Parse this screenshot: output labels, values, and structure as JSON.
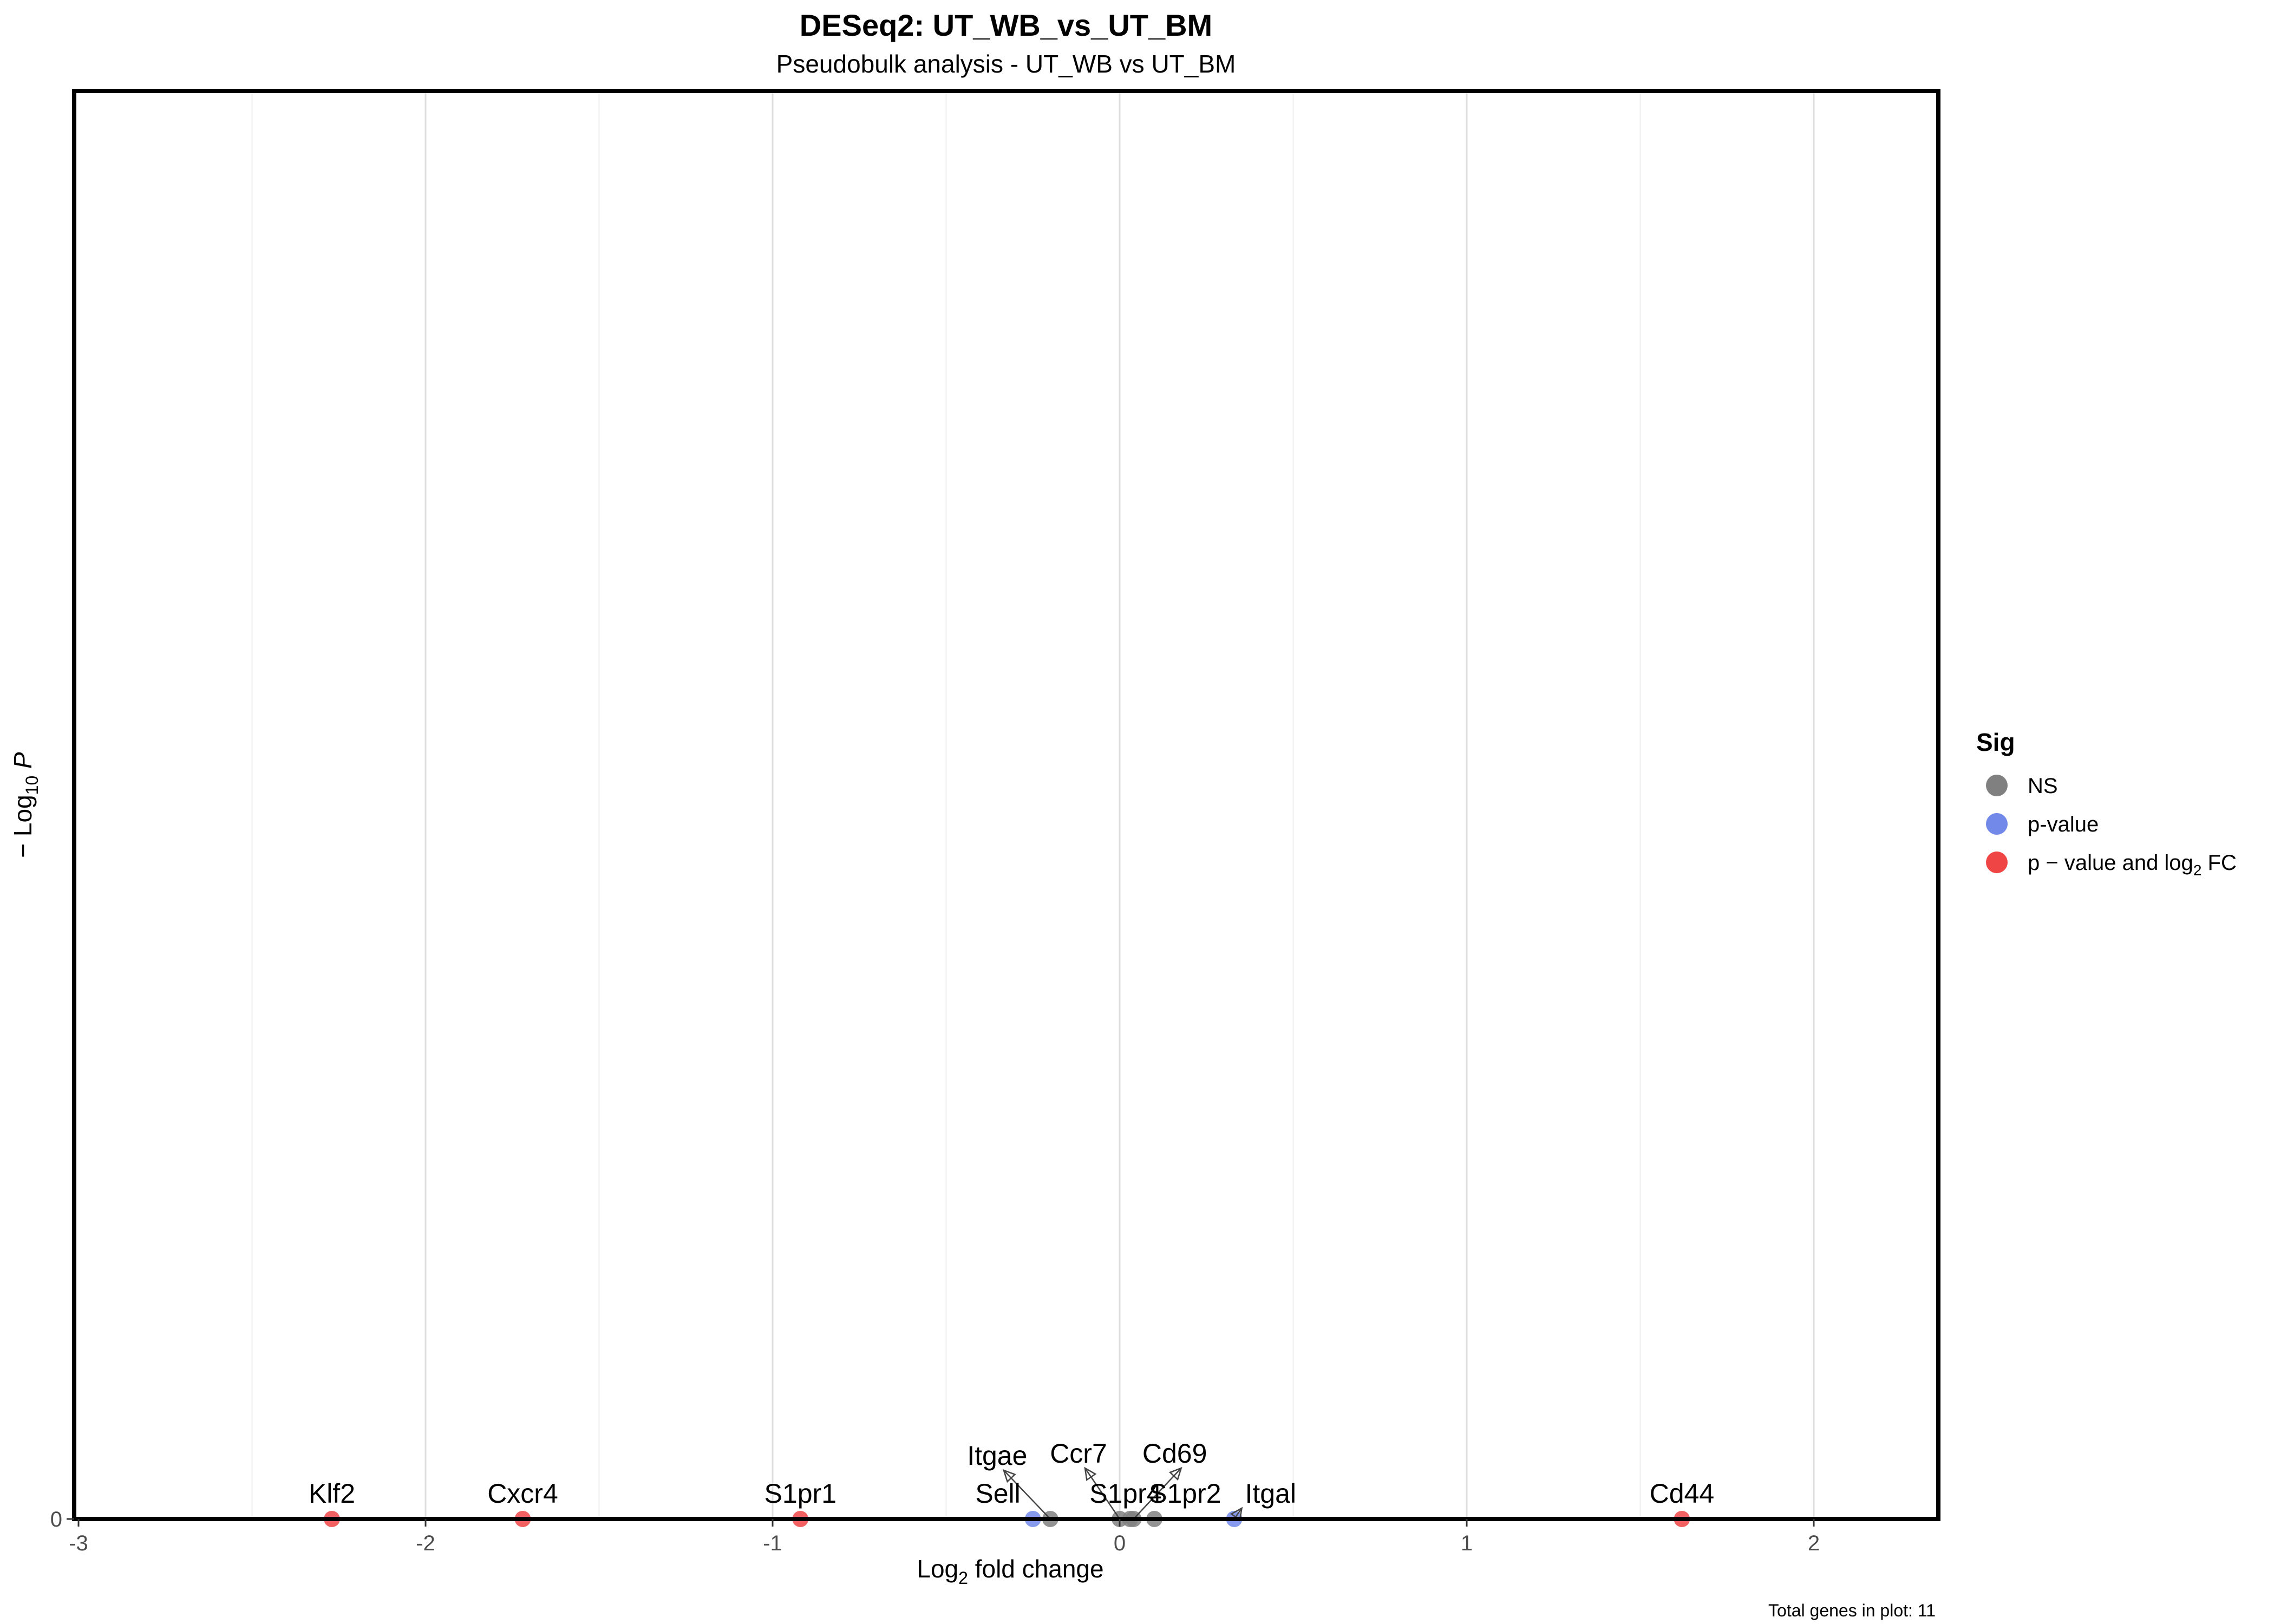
{
  "chart_data": {
    "type": "scatter",
    "title": "DESeq2: UT_WB_vs_UT_BM",
    "subtitle": "Pseudobulk analysis - UT_WB vs UT_BM",
    "xlabel": {
      "main": "Log",
      "sub": "2",
      "tail": " fold change"
    },
    "ylabel": {
      "lead": "− Log",
      "sub": "10",
      "tail": " P"
    },
    "xlim": [
      -3,
      2.35
    ],
    "ylim": [
      0,
      1
    ],
    "x_ticks": [
      {
        "value": -3,
        "label": "-3"
      },
      {
        "value": -2,
        "label": "-2"
      },
      {
        "value": -1,
        "label": "-1"
      },
      {
        "value": 0,
        "label": "0"
      },
      {
        "value": 1,
        "label": "1"
      },
      {
        "value": 2,
        "label": "2"
      }
    ],
    "y_ticks": [
      {
        "value": 0,
        "label": "0"
      }
    ],
    "grid": true,
    "legend": {
      "title": "Sig",
      "position": "right",
      "entries": [
        {
          "key": "NS",
          "label": "NS",
          "color": "#808080"
        },
        {
          "key": "pvalue",
          "label": "p-value",
          "color": "#7289ea"
        },
        {
          "key": "both",
          "label_main": "p − value and log",
          "label_sub": "2",
          "label_tail": " FC",
          "color": "#ef4545"
        }
      ]
    },
    "points": [
      {
        "gene": "Klf2",
        "x": -2.27,
        "y": 0,
        "sig": "both"
      },
      {
        "gene": "Cxcr4",
        "x": -1.72,
        "y": 0,
        "sig": "both"
      },
      {
        "gene": "S1pr1",
        "x": -0.92,
        "y": 0,
        "sig": "both"
      },
      {
        "gene": "Sell",
        "x": -0.25,
        "y": 0,
        "sig": "pvalue"
      },
      {
        "gene": "Itgae",
        "x": -0.2,
        "y": 0,
        "sig": "NS"
      },
      {
        "gene": "Ccr7",
        "x": 0.0,
        "y": 0,
        "sig": "NS"
      },
      {
        "gene": "S1pr4",
        "x": 0.03,
        "y": 0,
        "sig": "NS"
      },
      {
        "gene": "Cd69",
        "x": 0.04,
        "y": 0,
        "sig": "NS"
      },
      {
        "gene": "S1pr2",
        "x": 0.1,
        "y": 0,
        "sig": "NS"
      },
      {
        "gene": "Itgal",
        "x": 0.33,
        "y": 0,
        "sig": "pvalue"
      },
      {
        "gene": "Cd44",
        "x": 1.62,
        "y": 0,
        "sig": "both"
      }
    ],
    "caption": "Total genes in plot: 11"
  }
}
